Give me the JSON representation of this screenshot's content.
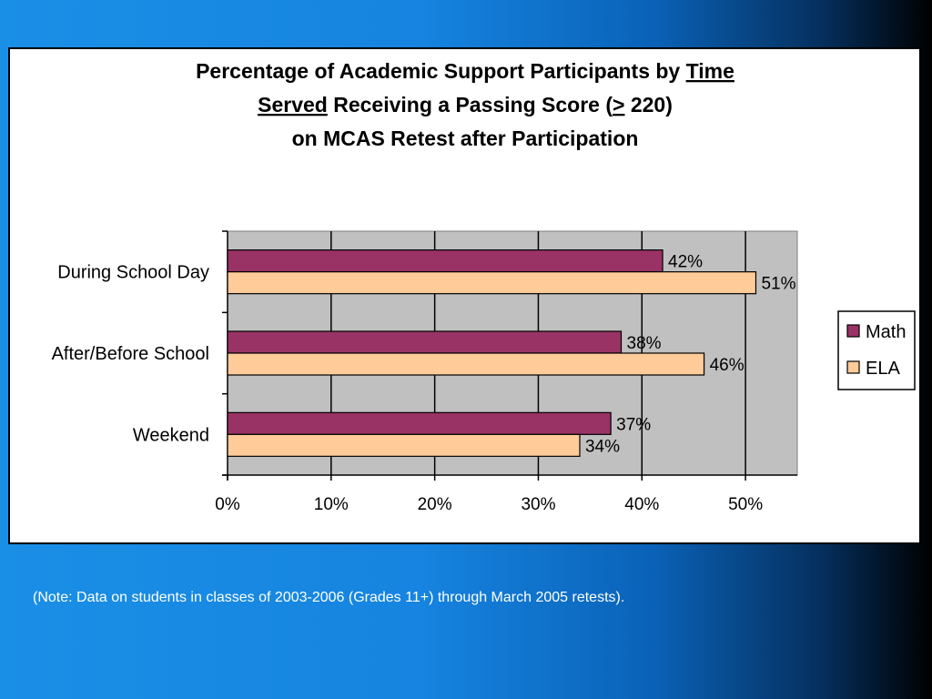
{
  "chart_data": {
    "type": "bar",
    "orientation": "horizontal",
    "title_lines": [
      [
        {
          "text": "Percentage of Academic Support Participants by ",
          "underline": false
        },
        {
          "text": "Time ",
          "underline": true
        }
      ],
      [
        {
          "text": "Served",
          "underline": true
        },
        {
          "text": " Receiving a Passing Score (",
          "underline": false
        },
        {
          "text": ">",
          "underline": true
        },
        {
          "text": " 220)",
          "underline": false
        }
      ],
      [
        {
          "text": "on MCAS Retest after Participation",
          "underline": false
        }
      ]
    ],
    "categories": [
      "During School Day",
      "After/Before School",
      "Weekend"
    ],
    "series": [
      {
        "name": "Math",
        "values": [
          42,
          38,
          37
        ],
        "labels": [
          "42%",
          "38%",
          "37%"
        ],
        "color": "#993366"
      },
      {
        "name": "ELA",
        "values": [
          51,
          46,
          34
        ],
        "labels": [
          "51%",
          "46%",
          "34%"
        ],
        "color": "#FFCC99"
      }
    ],
    "x_ticks": [
      "0%",
      "10%",
      "20%",
      "30%",
      "40%",
      "50%"
    ],
    "xlim": [
      0,
      55
    ],
    "grid": true,
    "plot_background": "#C0C0C0",
    "legend_position": "right"
  },
  "note": "(Note: Data on students in classes of 2003-2006 (Grades 11+) through March 2005 retests)."
}
